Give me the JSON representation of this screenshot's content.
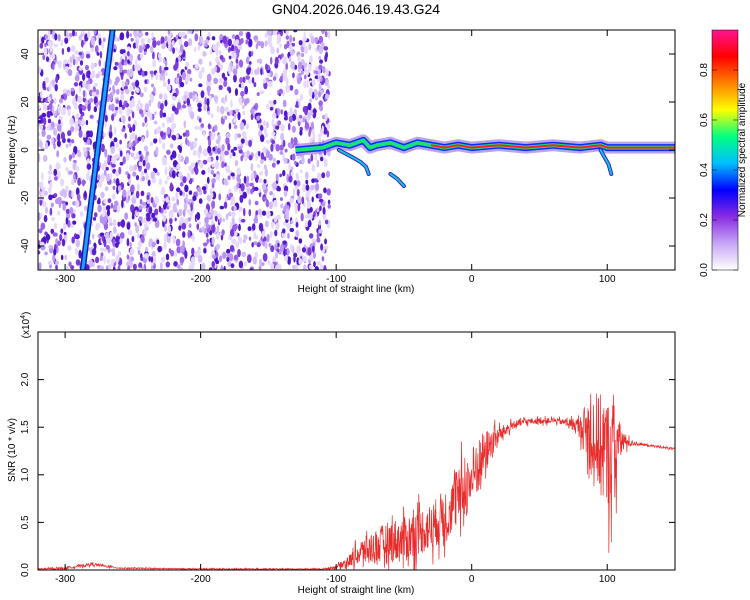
{
  "title": "GN04.2026.046.19.43.G24",
  "colors": {
    "line": "#e82c2c",
    "spectrogram_palette": [
      "#ffffff",
      "#c7a6f5",
      "#8a2be2",
      "#0000ff",
      "#00bfff",
      "#00ff80",
      "#ffff00",
      "#ff8000",
      "#ff0000",
      "#ff1493"
    ]
  },
  "colorbar": {
    "label": "Normalized spectral amplitude",
    "ticks": [
      "0.0",
      "0.2",
      "0.4",
      "0.6",
      "0.8"
    ],
    "range": [
      0,
      0.96
    ]
  },
  "chart_data": [
    {
      "type": "heatmap",
      "xlabel": "Height of straight line (km)",
      "ylabel": "Frequency (Hz)",
      "xlim": [
        -320,
        150
      ],
      "ylim": [
        -50,
        50
      ],
      "xticks": [
        "-300",
        "-200",
        "-100",
        "0",
        "100"
      ],
      "yticks": [
        "-40",
        "-20",
        "0",
        "20",
        "40"
      ],
      "noise_region_x": [
        -320,
        -105
      ],
      "diagonal_streak": {
        "from": [
          -287,
          -50
        ],
        "to": [
          -265,
          50
        ]
      },
      "tail_segments": [
        {
          "x": [
            -98,
            -88,
            -82,
            -78,
            -76
          ],
          "y": [
            0,
            -3,
            -5,
            -7,
            -10
          ]
        },
        {
          "x": [
            -60,
            -55,
            -50
          ],
          "y": [
            -10,
            -12,
            -15
          ]
        },
        {
          "x": [
            95,
            98,
            101,
            103
          ],
          "y": [
            0,
            -3,
            -6,
            -10
          ]
        }
      ],
      "ridge": {
        "x": [
          -130,
          -110,
          -100,
          -90,
          -80,
          -75,
          -70,
          -60,
          -50,
          -40,
          -30,
          -20,
          -10,
          0,
          20,
          40,
          60,
          80,
          95,
          100,
          110,
          150
        ],
        "y": [
          0,
          1,
          3,
          2,
          4,
          1,
          2,
          3,
          1,
          3,
          2,
          1,
          2,
          1,
          2,
          1,
          2,
          1,
          2,
          1,
          1,
          1
        ]
      }
    },
    {
      "type": "line",
      "xlabel": "Height of straight line (km)",
      "ylabel": "SNR (10 * v/v)",
      "scale_label": "(x10^4)",
      "xlim": [
        -320,
        150
      ],
      "ylim": [
        0,
        2.5
      ],
      "xticks": [
        "-300",
        "-200",
        "-100",
        "0",
        "100"
      ],
      "yticks": [
        "0.0",
        "0.5",
        "1.0",
        "1.5",
        "2.0"
      ],
      "series": [
        {
          "envelope_x": [
            -320,
            -300,
            -280,
            -260,
            -200,
            -150,
            -110,
            -100,
            -90,
            -80,
            -70,
            -60,
            -50,
            -40,
            -30,
            -20,
            -10,
            0,
            5,
            10,
            20,
            30,
            40,
            60,
            70,
            80,
            85,
            90,
            95,
            100,
            105,
            110,
            115,
            120,
            130,
            150
          ],
          "mean": [
            0.01,
            0.02,
            0.06,
            0.02,
            0.01,
            0.01,
            0.01,
            0.03,
            0.1,
            0.2,
            0.25,
            0.3,
            0.32,
            0.4,
            0.45,
            0.58,
            0.75,
            0.95,
            1.1,
            1.25,
            1.42,
            1.52,
            1.56,
            1.57,
            1.55,
            1.5,
            1.45,
            1.4,
            1.3,
            1.2,
            1.25,
            1.35,
            1.34,
            1.33,
            1.31,
            1.27
          ],
          "amplitude": [
            0.01,
            0.02,
            0.03,
            0.01,
            0.01,
            0.01,
            0.01,
            0.03,
            0.12,
            0.25,
            0.35,
            0.4,
            0.45,
            0.45,
            0.45,
            0.5,
            0.55,
            0.6,
            0.55,
            0.4,
            0.15,
            0.08,
            0.06,
            0.05,
            0.06,
            0.2,
            0.6,
            0.9,
            1.0,
            1.1,
            1.0,
            0.3,
            0.1,
            0.03,
            0.02,
            0.02
          ]
        }
      ]
    }
  ]
}
